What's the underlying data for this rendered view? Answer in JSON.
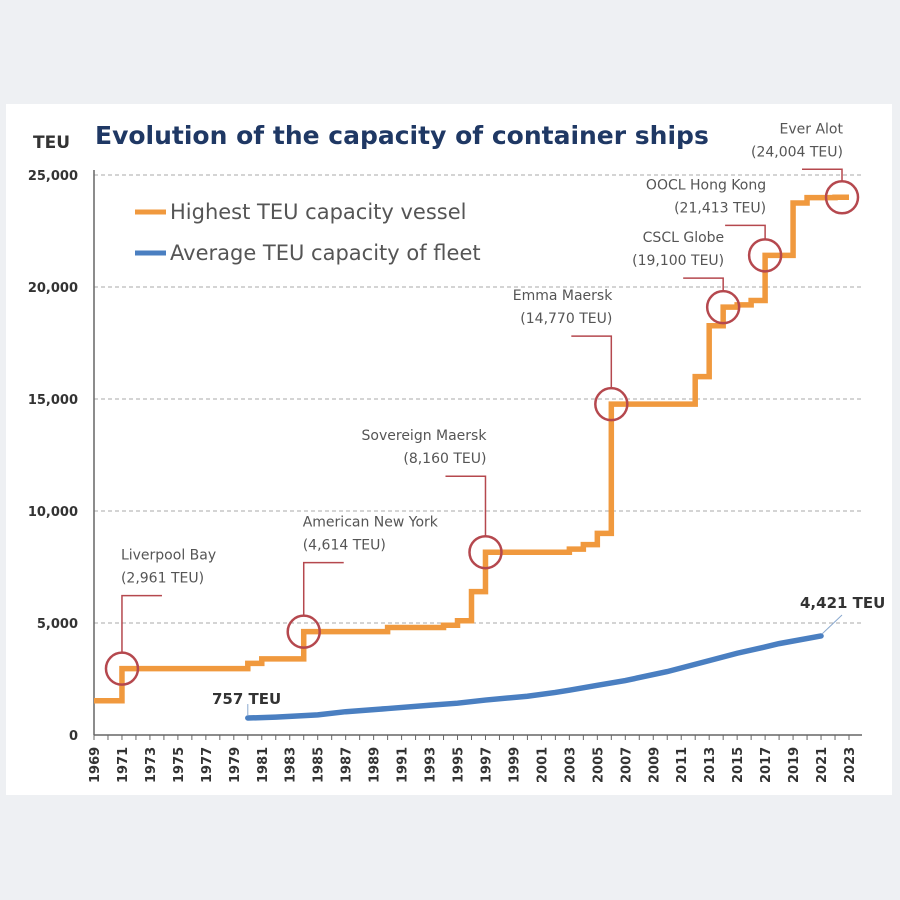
{
  "chart_data": {
    "type": "line",
    "title": "Evolution of the capacity of container ships",
    "ylabel": "TEU",
    "xlabel": "",
    "ylim": [
      0,
      25000
    ],
    "xlim": [
      1969,
      2023
    ],
    "y_ticks": [
      "0",
      "5,000",
      "10,000",
      "15,000",
      "20,000",
      "25,000"
    ],
    "y_tick_values": [
      0,
      5000,
      10000,
      15000,
      20000,
      25000
    ],
    "x_ticks": [
      "1969",
      "1971",
      "1973",
      "1975",
      "1977",
      "1979",
      "1981",
      "1983",
      "1985",
      "1987",
      "1989",
      "1991",
      "1993",
      "1995",
      "1997",
      "1999",
      "2001",
      "2003",
      "2005",
      "2007",
      "2009",
      "2011",
      "2013",
      "2015",
      "2017",
      "2019",
      "2021",
      "2023"
    ],
    "grid": "horizontal dashed",
    "legend_placement": "top-left",
    "series": [
      {
        "name": "Highest TEU capacity vessel",
        "color": "#f0993e",
        "style": "step",
        "x": [
          1969,
          1971,
          1980,
          1981,
          1984,
          1990,
          1994,
          1995,
          1996,
          1997,
          2003,
          2004,
          2005,
          2006,
          2012,
          2013,
          2014,
          2015,
          2016,
          2017,
          2019,
          2020,
          2022,
          2023
        ],
        "y": [
          1530,
          2961,
          3200,
          3400,
          4614,
          4800,
          4900,
          5100,
          6400,
          8160,
          8300,
          8500,
          9000,
          14770,
          16000,
          18270,
          19100,
          19200,
          19400,
          21413,
          23750,
          23990,
          24004,
          24004
        ]
      },
      {
        "name": "Average TEU capacity of fleet",
        "color": "#4a7fc1",
        "style": "line",
        "x": [
          1980,
          1982,
          1985,
          1987,
          1990,
          1993,
          1995,
          1997,
          2000,
          2002,
          2003,
          2005,
          2007,
          2010,
          2013,
          2015,
          2017,
          2018,
          2021
        ],
        "y": [
          757,
          800,
          900,
          1040,
          1180,
          1330,
          1420,
          1560,
          1730,
          1900,
          2000,
          2220,
          2430,
          2830,
          3320,
          3650,
          3930,
          4080,
          4421
        ]
      }
    ],
    "annotations": [
      {
        "name": "Liverpool Bay",
        "value": "(2,961 TEU)",
        "x": 1971,
        "y": 2961
      },
      {
        "name": "American New York",
        "value": "(4,614 TEU)",
        "x": 1984,
        "y": 4614
      },
      {
        "name": "Sovereign Maersk",
        "value": "(8,160 TEU)",
        "x": 1997,
        "y": 8160
      },
      {
        "name": "Emma Maersk",
        "value": "(14,770 TEU)",
        "x": 2006,
        "y": 14770
      },
      {
        "name": "CSCL Globe",
        "value": "(19,100 TEU)",
        "x": 2014,
        "y": 19100
      },
      {
        "name": "OOCL Hong Kong",
        "value": "(21,413 TEU)",
        "x": 2017,
        "y": 21413
      },
      {
        "name": "Ever Alot",
        "value": "(24,004 TEU)",
        "x": 2022.5,
        "y": 24004
      }
    ],
    "endpoint_labels": {
      "start": "757 TEU",
      "end": "4,421 TEU"
    },
    "annotation_color": "#b5484e",
    "title_color": "#1f3864"
  }
}
